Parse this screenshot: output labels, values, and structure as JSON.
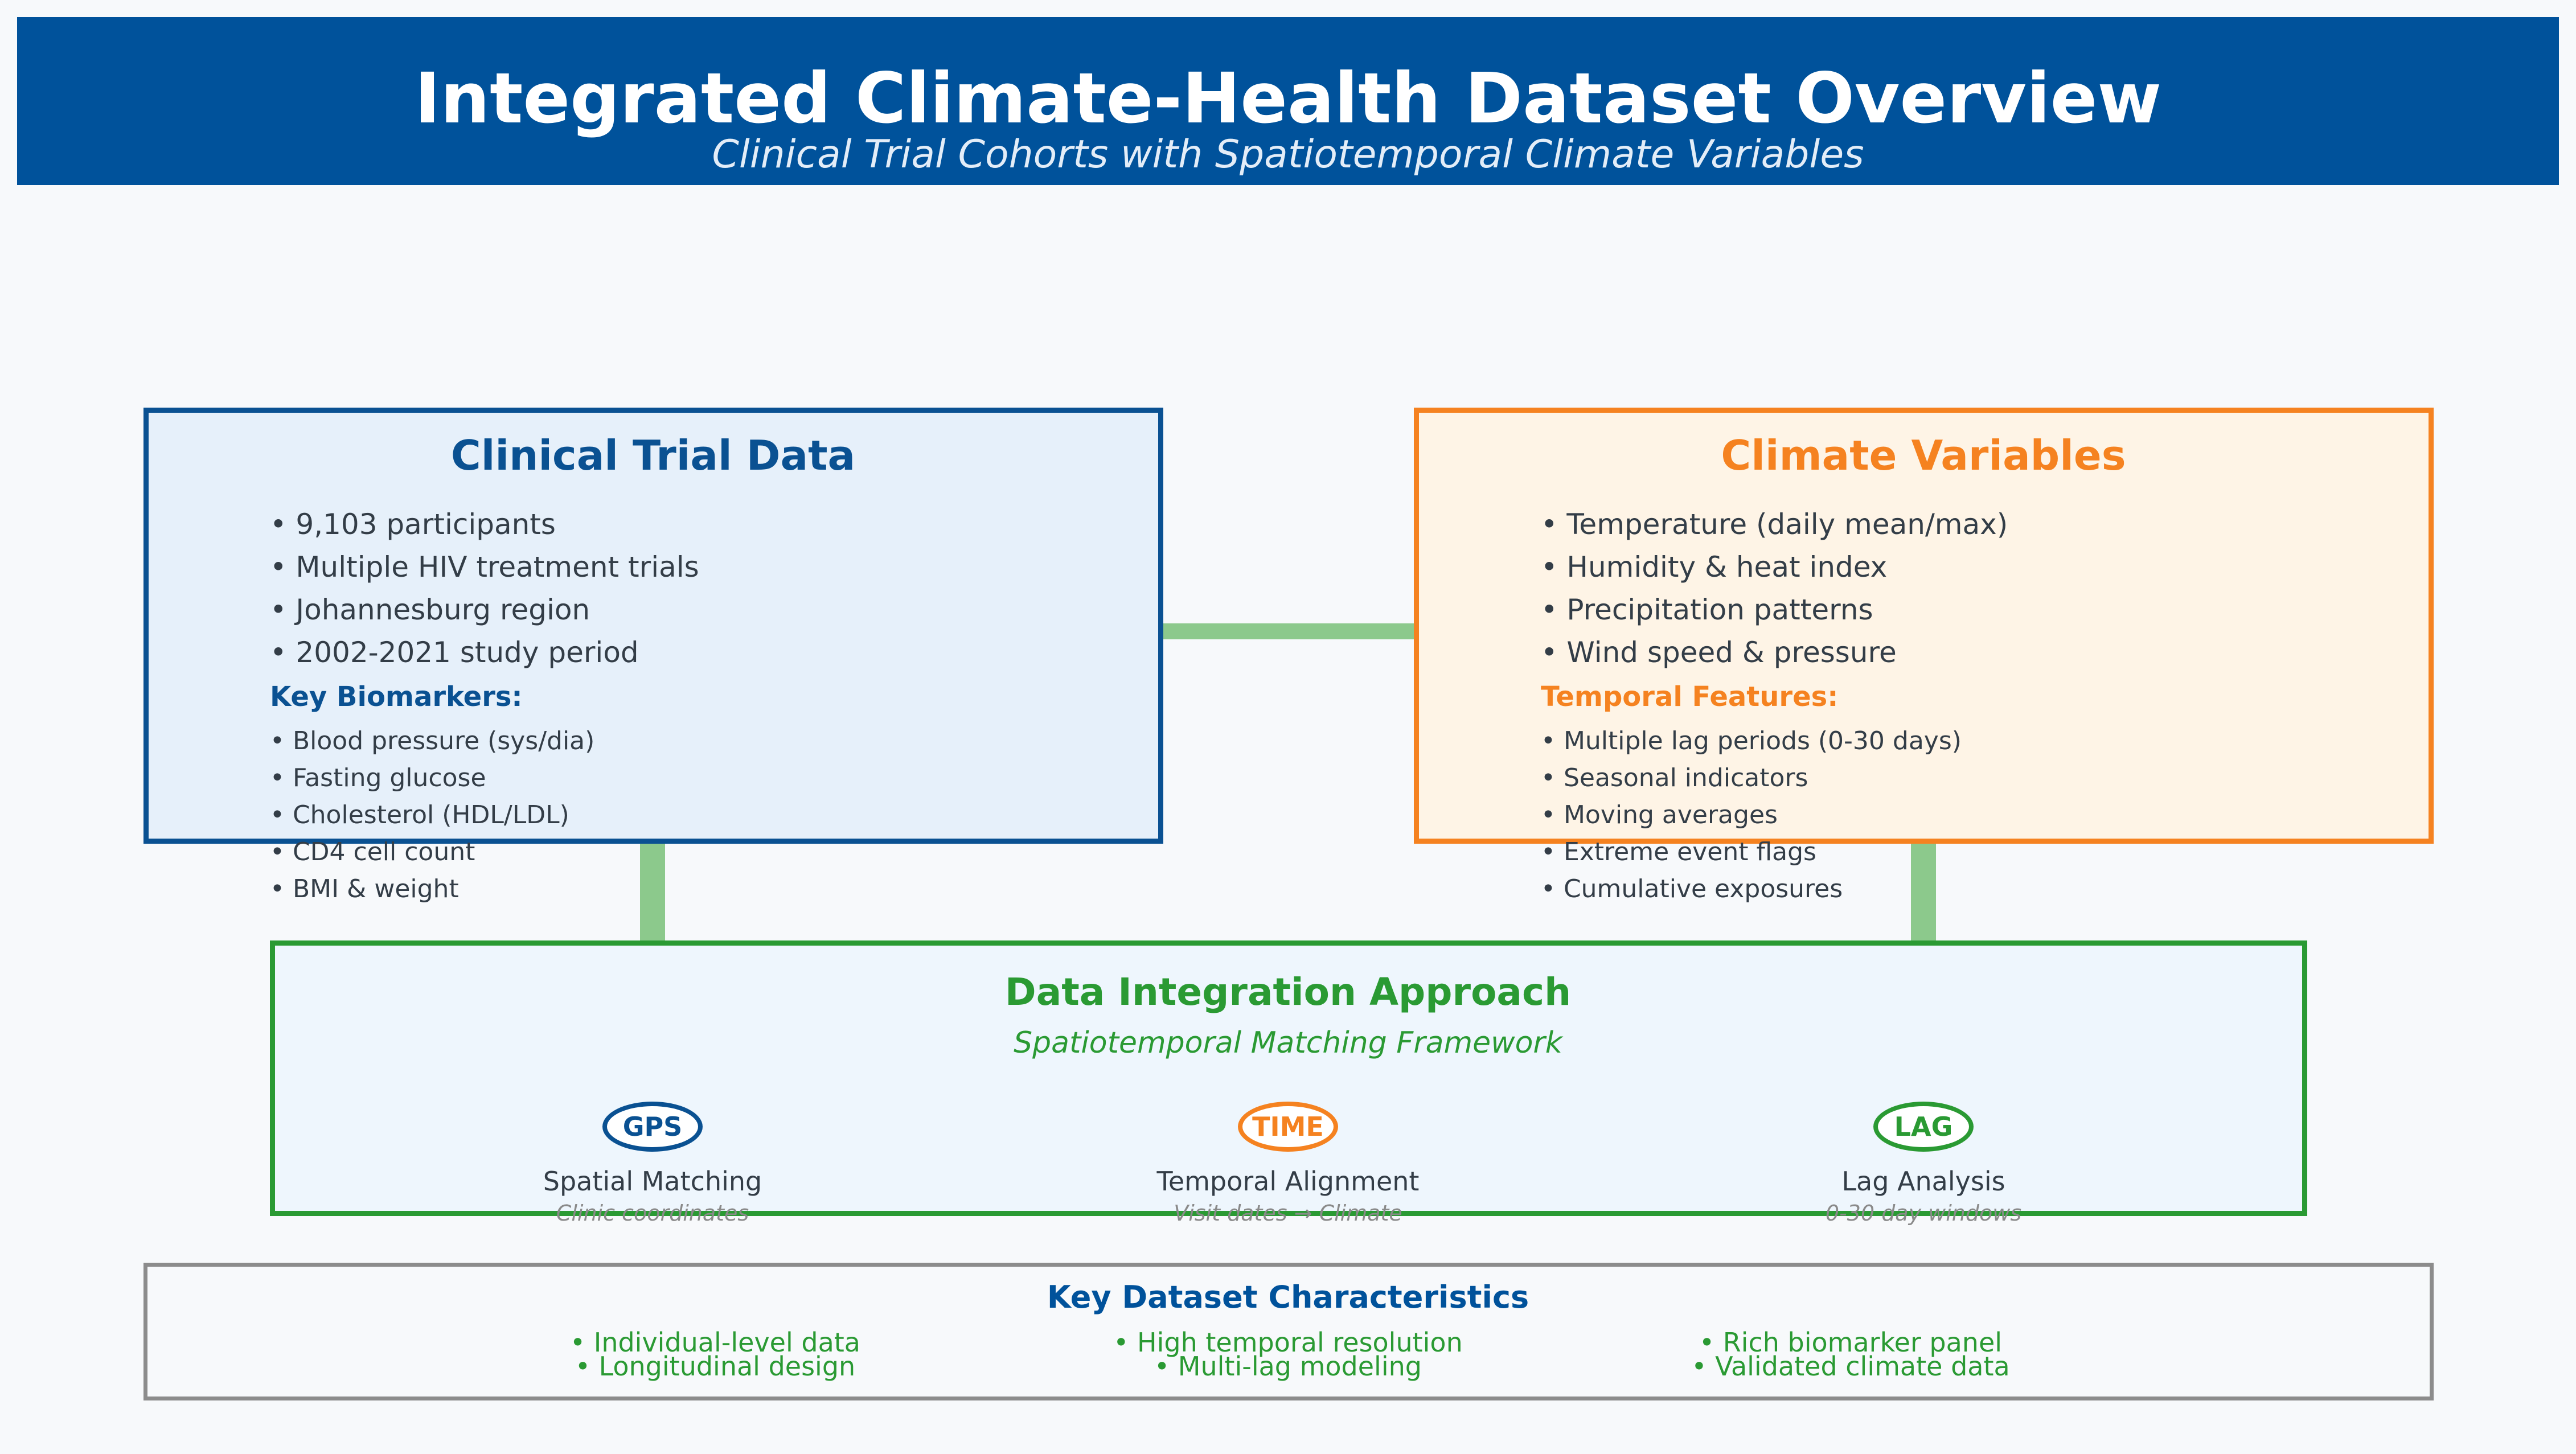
{
  "header": {
    "title": "Integrated Climate-Health Dataset Overview",
    "subtitle": "Clinical Trial Cohorts with Spatiotemporal Climate Variables"
  },
  "clinical": {
    "title": "Clinical Trial Data",
    "bullets": [
      "• 9,103 participants",
      "• Multiple HIV treatment trials",
      "• Johannesburg region",
      "• 2002-2021 study period"
    ],
    "subheading": "Key Biomarkers:",
    "items": [
      "• Blood pressure (sys/dia)",
      "• Fasting glucose",
      "• Cholesterol (HDL/LDL)",
      "• CD4 cell count",
      "• BMI & weight"
    ]
  },
  "climate": {
    "title": "Climate Variables",
    "bullets": [
      "• Temperature (daily mean/max)",
      "• Humidity & heat index",
      "• Precipitation patterns",
      "• Wind speed & pressure"
    ],
    "subheading": "Temporal Features:",
    "items": [
      "• Multiple lag periods (0-30 days)",
      "• Seasonal indicators",
      "• Moving averages",
      "• Extreme event flags",
      "• Cumulative exposures"
    ]
  },
  "integration": {
    "title": "Data Integration Approach",
    "subtitle": "Spatiotemporal Matching Framework",
    "methods": [
      {
        "badge": "GPS",
        "label": "Spatial Matching",
        "desc": "Clinic coordinates"
      },
      {
        "badge": "TIME",
        "label": "Temporal Alignment",
        "desc": "Visit dates → Climate"
      },
      {
        "badge": "LAG",
        "label": "Lag Analysis",
        "desc": "0-30 day windows"
      }
    ]
  },
  "key_characteristics": {
    "title": "Key Dataset Characteristics",
    "columns": [
      [
        "• Individual-level data",
        "• Longitudinal design"
      ],
      [
        "• High temporal resolution",
        "• Multi-lag modeling"
      ],
      [
        "• Rich biomarker panel",
        "• Validated climate data"
      ]
    ]
  },
  "colors": {
    "header_bg": "#00529b",
    "clinical_accent": "#0a5192",
    "climate_accent": "#f58220",
    "integration_accent": "#2a9a33",
    "arrow_fill": "#8cc98c"
  }
}
